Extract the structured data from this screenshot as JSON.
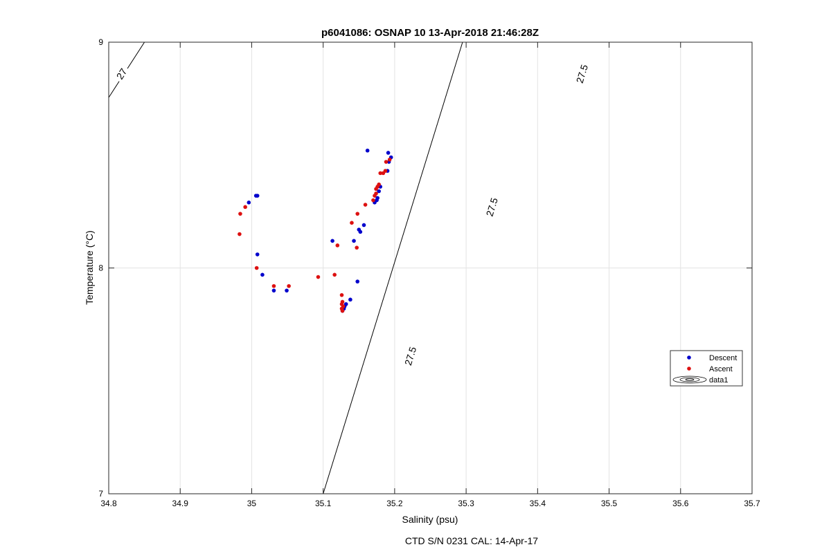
{
  "chart_data": {
    "type": "scatter",
    "title": "p6041086: OSNAP 10 13-Apr-2018 21:46:28Z",
    "xlabel": "Salinity (psu)",
    "ylabel": "Temperature (°C)",
    "footer": "CTD S/N 0231  CAL: 14-Apr-17",
    "xlim": [
      34.8,
      35.7
    ],
    "ylim": [
      7,
      9
    ],
    "xticks": [
      34.8,
      34.9,
      35,
      35.1,
      35.2,
      35.3,
      35.4,
      35.5,
      35.6,
      35.7
    ],
    "xtick_labels": [
      "34.8",
      "34.9",
      "35",
      "35.1",
      "35.2",
      "35.3",
      "35.4",
      "35.5",
      "35.6",
      "35.7"
    ],
    "yticks": [
      7,
      8,
      9
    ],
    "ytick_labels": [
      "7",
      "8",
      "9"
    ],
    "grid": true,
    "legend_position": "right",
    "series": [
      {
        "name": "Descent",
        "color": "#0000cc",
        "marker": "dot",
        "points": [
          [
            35.162,
            8.52
          ],
          [
            35.191,
            8.51
          ],
          [
            35.195,
            8.49
          ],
          [
            35.192,
            8.47
          ],
          [
            35.19,
            8.43
          ],
          [
            35.18,
            8.36
          ],
          [
            35.178,
            8.34
          ],
          [
            35.176,
            8.31
          ],
          [
            35.172,
            8.29
          ],
          [
            35.175,
            8.3
          ],
          [
            35.157,
            8.19
          ],
          [
            35.15,
            8.17
          ],
          [
            35.152,
            8.16
          ],
          [
            35.143,
            8.12
          ],
          [
            35.113,
            8.12
          ],
          [
            35.006,
            8.32
          ],
          [
            35.008,
            8.32
          ],
          [
            34.996,
            8.29
          ],
          [
            35.008,
            8.06
          ],
          [
            35.015,
            7.97
          ],
          [
            35.031,
            7.9
          ],
          [
            35.049,
            7.9
          ],
          [
            35.148,
            7.94
          ],
          [
            35.138,
            7.86
          ],
          [
            35.132,
            7.84
          ],
          [
            35.13,
            7.83
          ],
          [
            35.129,
            7.82
          ],
          [
            35.127,
            7.81
          ]
        ]
      },
      {
        "name": "Ascent",
        "color": "#dd1111",
        "marker": "dot",
        "points": [
          [
            35.193,
            8.48
          ],
          [
            35.188,
            8.47
          ],
          [
            35.187,
            8.43
          ],
          [
            35.184,
            8.42
          ],
          [
            35.18,
            8.42
          ],
          [
            35.178,
            8.37
          ],
          [
            35.176,
            8.36
          ],
          [
            35.174,
            8.35
          ],
          [
            35.174,
            8.33
          ],
          [
            35.172,
            8.32
          ],
          [
            35.17,
            8.3
          ],
          [
            35.159,
            8.28
          ],
          [
            35.148,
            8.24
          ],
          [
            35.14,
            8.2
          ],
          [
            35.12,
            8.1
          ],
          [
            35.147,
            8.09
          ],
          [
            34.991,
            8.27
          ],
          [
            34.984,
            8.24
          ],
          [
            34.983,
            8.15
          ],
          [
            35.007,
            8.0
          ],
          [
            35.031,
            7.92
          ],
          [
            35.052,
            7.92
          ],
          [
            35.093,
            7.96
          ],
          [
            35.116,
            7.97
          ],
          [
            35.126,
            7.88
          ],
          [
            35.127,
            7.85
          ],
          [
            35.126,
            7.84
          ],
          [
            35.128,
            7.83
          ],
          [
            35.126,
            7.82
          ],
          [
            35.127,
            7.81
          ]
        ]
      },
      {
        "name": "data1",
        "type": "contour",
        "color": "#000000",
        "levels": [
          {
            "label": "27",
            "line": [
              [
                34.8,
                8.755
              ],
              [
                34.85,
                9.0
              ]
            ],
            "label_positions": [
              [
                34.818,
                8.86
              ]
            ]
          },
          {
            "label": "27.5",
            "line": [
              [
                35.1,
                7.0
              ],
              [
                35.295,
                9.0
              ]
            ],
            "label_positions": [
              [
                35.222,
                7.61
              ],
              [
                35.336,
                8.27
              ],
              [
                35.462,
                8.86
              ]
            ]
          }
        ]
      }
    ]
  }
}
